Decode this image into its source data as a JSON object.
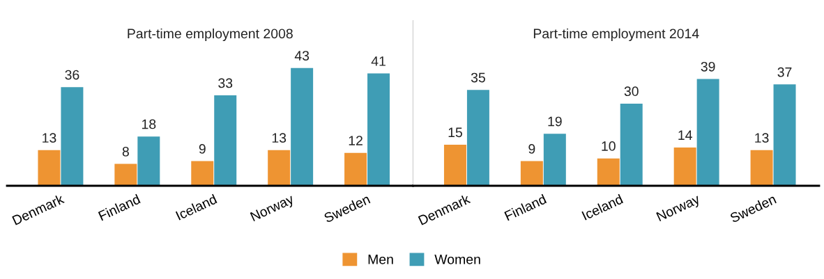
{
  "chart_data": [
    {
      "type": "bar",
      "title": "Part-time employment 2008",
      "categories": [
        "Denmark",
        "Finland",
        "Iceland",
        "Norway",
        "Sweden"
      ],
      "series": [
        {
          "name": "Men",
          "color": "#ee9432",
          "values": [
            13,
            8,
            9,
            13,
            12
          ]
        },
        {
          "name": "Women",
          "color": "#3f9db5",
          "values": [
            36,
            18,
            33,
            43,
            41
          ]
        }
      ],
      "data_labels": true,
      "tick_labels": "x",
      "grid": false,
      "legend": "bottom"
    },
    {
      "type": "bar",
      "title": "Part-time employment 2014",
      "categories": [
        "Denmark",
        "Finland",
        "Iceland",
        "Norway",
        "Sweden"
      ],
      "series": [
        {
          "name": "Men",
          "color": "#ee9432",
          "values": [
            15,
            9,
            10,
            14,
            13
          ]
        },
        {
          "name": "Women",
          "color": "#3f9db5",
          "values": [
            35,
            19,
            30,
            39,
            37
          ]
        }
      ],
      "data_labels": true,
      "tick_labels": "x",
      "grid": false
    }
  ]
}
